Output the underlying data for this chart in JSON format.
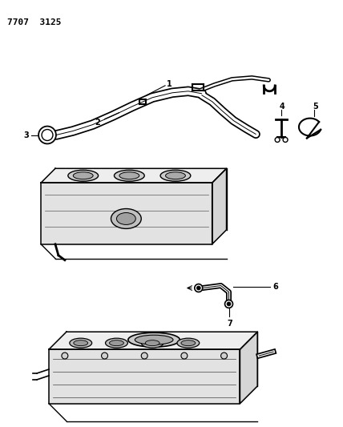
{
  "title_code": "7707  3125",
  "background_color": "#ffffff",
  "line_color": "#000000",
  "fig_width": 4.28,
  "fig_height": 5.33,
  "dpi": 100
}
